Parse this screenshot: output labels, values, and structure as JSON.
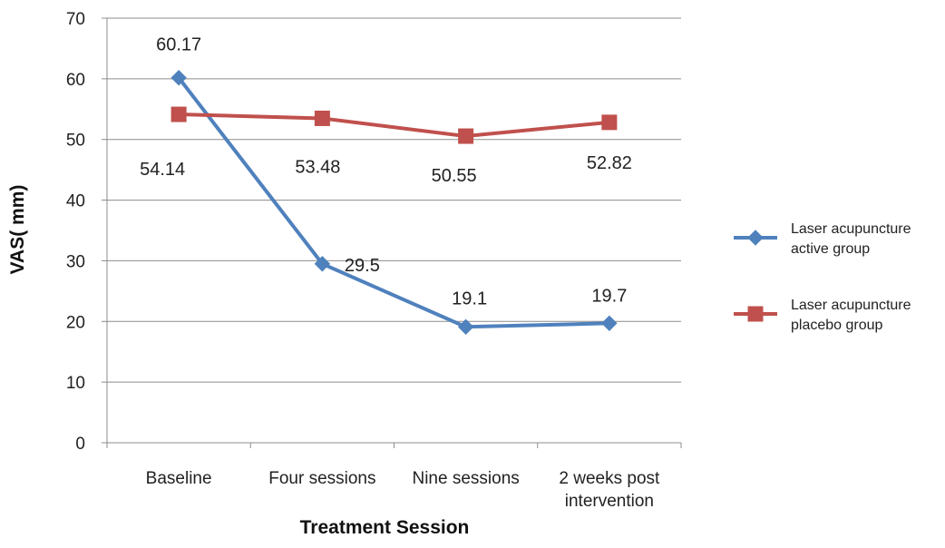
{
  "chart_data": {
    "type": "line",
    "title": "",
    "xlabel": "Treatment Session",
    "ylabel": "VAS( mm)",
    "ylim": [
      0,
      70
    ],
    "yticks": [
      0,
      10,
      20,
      30,
      40,
      50,
      60,
      70
    ],
    "grid": true,
    "legend_position": "right",
    "categories": [
      [
        "Baseline"
      ],
      [
        "Four sessions"
      ],
      [
        "Nine sessions"
      ],
      [
        "2 weeks post",
        "intervention"
      ]
    ],
    "series": [
      {
        "name": [
          "Laser acupuncture",
          "active group"
        ],
        "color": "#4F81BD",
        "marker": "diamond",
        "values": [
          60.17,
          29.5,
          19.1,
          19.7
        ],
        "labels": [
          "60.17",
          "29.5",
          "19.1",
          "19.7"
        ]
      },
      {
        "name": [
          "Laser acupuncture",
          "placebo group"
        ],
        "color": "#C0504D",
        "marker": "square",
        "values": [
          54.14,
          53.48,
          50.55,
          52.82
        ],
        "labels": [
          "54.14",
          "53.48",
          "50.55",
          "52.82"
        ]
      }
    ]
  }
}
